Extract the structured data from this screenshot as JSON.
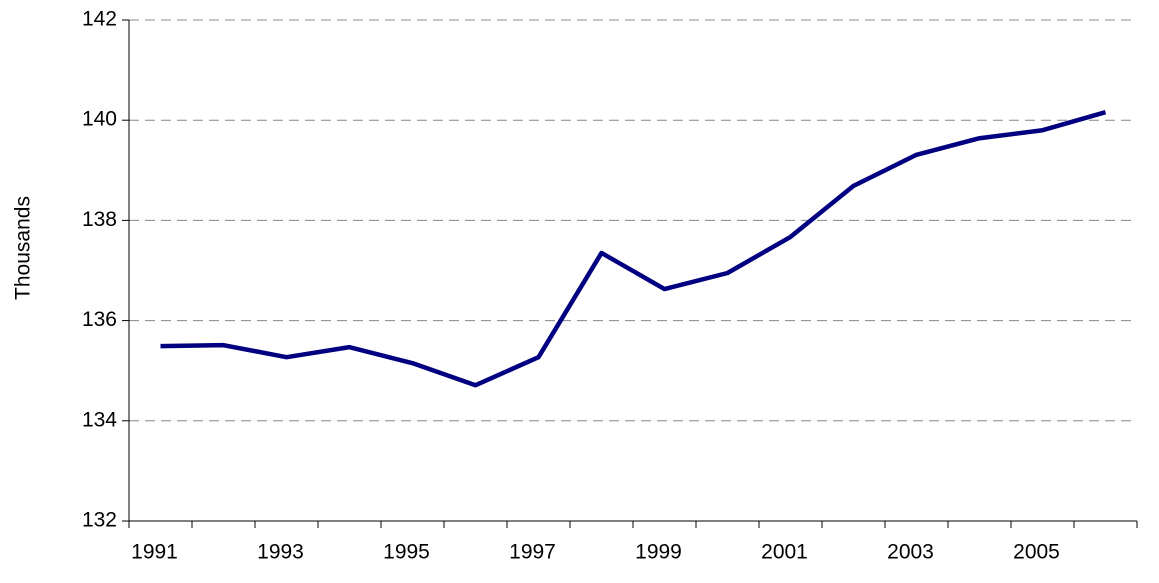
{
  "chart_data": {
    "type": "line",
    "y_label": "Thousands",
    "categories": [
      "1991",
      null,
      "1993",
      null,
      "1995",
      null,
      "1997",
      null,
      "1999",
      null,
      "2001",
      null,
      "2003",
      null,
      "2005",
      null
    ],
    "values": [
      135.49,
      135.51,
      135.27,
      135.47,
      135.15,
      134.71,
      135.27,
      137.35,
      136.63,
      136.95,
      137.67,
      138.69,
      139.31,
      139.64,
      139.8,
      140.16
    ],
    "color": "#000080",
    "ylim": [
      132,
      142
    ],
    "yticks": [
      132,
      134,
      136,
      138,
      140,
      142
    ],
    "grid": true
  }
}
